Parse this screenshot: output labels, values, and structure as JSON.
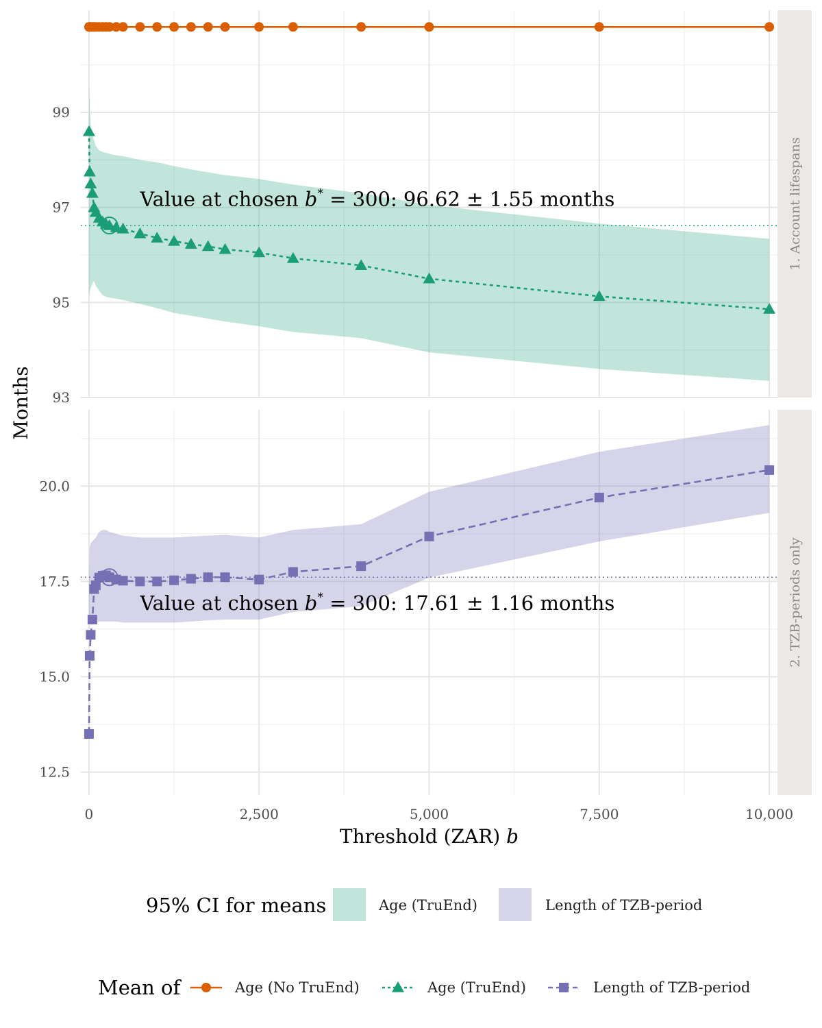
{
  "chart_data": {
    "type": "line",
    "xlabel": "Threshold (ZAR)",
    "xlabel_italic": "b",
    "ylabel": "Months",
    "x_ticks": [
      "0",
      "2,500",
      "5,000",
      "7,500",
      "10,000"
    ],
    "x_tick_values": [
      0,
      2500,
      5000,
      7500,
      10000
    ],
    "xlim": [
      -120,
      10120
    ],
    "grid": true,
    "chosen_b": 300,
    "x": [
      0,
      10,
      25,
      50,
      75,
      100,
      150,
      200,
      250,
      300,
      400,
      500,
      750,
      1000,
      1250,
      1500,
      1750,
      2000,
      2500,
      3000,
      4000,
      5000,
      7500,
      10000
    ],
    "panels": [
      {
        "strip": "1. Account lifespans",
        "ylim": [
          93,
          101.15
        ],
        "y_ticks": [
          "93",
          "95",
          "97",
          "99"
        ],
        "y_tick_values": [
          93,
          95,
          97,
          99
        ],
        "reference_value": 96.62,
        "reference_color": "#1b9e77",
        "annotation": {
          "prefix": "Value at chosen",
          "var": "b",
          "sup": "*",
          "suffix": " = 300:  96.62 ± 1.55 months",
          "x": 750,
          "y": 97.03
        },
        "series": [
          {
            "key": "no_truend",
            "name": "Age (No TruEnd)",
            "color": "#d95f02",
            "marker": "circle",
            "dash": "",
            "values": [
              100.8,
              100.8,
              100.8,
              100.8,
              100.8,
              100.8,
              100.8,
              100.8,
              100.8,
              100.8,
              100.8,
              100.8,
              100.8,
              100.8,
              100.8,
              100.8,
              100.8,
              100.8,
              100.8,
              100.8,
              100.8,
              100.8,
              100.8,
              100.8
            ]
          },
          {
            "key": "truend",
            "name": "Age (TruEnd)",
            "color": "#1b9e77",
            "marker": "triangle",
            "dash": "5,5",
            "values": [
              98.6,
              97.75,
              97.5,
              97.3,
              97.0,
              96.9,
              96.78,
              96.7,
              96.65,
              96.62,
              96.58,
              96.55,
              96.45,
              96.36,
              96.29,
              96.23,
              96.18,
              96.12,
              96.05,
              95.93,
              95.78,
              95.5,
              95.13,
              94.86
            ]
          }
        ],
        "band": {
          "name": "Age (TruEnd)",
          "color": "#1b9e77",
          "upper": [
            99.7,
            99.1,
            98.75,
            98.55,
            98.4,
            98.3,
            98.2,
            98.17,
            98.15,
            98.13,
            98.1,
            98.08,
            98.0,
            97.95,
            97.87,
            97.8,
            97.74,
            97.68,
            97.6,
            97.48,
            97.3,
            97.05,
            96.66,
            96.34
          ],
          "lower": [
            95.1,
            95.25,
            95.3,
            95.4,
            95.45,
            95.35,
            95.25,
            95.15,
            95.12,
            95.1,
            95.08,
            95.05,
            94.97,
            94.88,
            94.78,
            94.72,
            94.66,
            94.6,
            94.5,
            94.38,
            94.25,
            93.95,
            93.6,
            93.35
          ]
        }
      },
      {
        "strip": "2. TZB-periods only",
        "ylim": [
          11.9,
          22.0
        ],
        "y_ticks": [
          "12.5",
          "15.0",
          "17.5",
          "20.0"
        ],
        "y_tick_values": [
          12.5,
          15.0,
          17.5,
          20.0
        ],
        "reference_value": 17.61,
        "reference_color": "#7570b3",
        "annotation": {
          "prefix": "Value at chosen",
          "var": "b",
          "sup": "*",
          "suffix": " = 300:  17.61 ± 1.16 months",
          "x": 750,
          "y": 16.75
        },
        "series": [
          {
            "key": "tzb",
            "name": "Length of TZB-period",
            "color": "#7570b3",
            "marker": "square",
            "dash": "10,6",
            "values": [
              13.5,
              15.55,
              16.1,
              16.5,
              17.3,
              17.4,
              17.6,
              17.65,
              17.66,
              17.61,
              17.55,
              17.52,
              17.5,
              17.5,
              17.53,
              17.57,
              17.61,
              17.61,
              17.55,
              17.75,
              17.9,
              18.68,
              19.7,
              20.42
            ]
          }
        ],
        "band": {
          "name": "Length of TZB-period",
          "color": "#7570b3",
          "upper": [
            17.5,
            18.4,
            18.5,
            18.55,
            18.6,
            18.65,
            18.8,
            18.85,
            18.85,
            18.8,
            18.75,
            18.7,
            18.65,
            18.65,
            18.65,
            18.68,
            18.7,
            18.72,
            18.65,
            18.85,
            19.0,
            19.85,
            20.9,
            21.6
          ],
          "lower": [
            16.6,
            16.4,
            16.4,
            16.42,
            16.42,
            16.45,
            16.45,
            16.45,
            16.45,
            16.45,
            16.45,
            16.42,
            16.42,
            16.42,
            16.42,
            16.45,
            16.48,
            16.5,
            16.5,
            16.7,
            16.85,
            17.6,
            18.55,
            19.3
          ]
        }
      }
    ],
    "legends": [
      {
        "title": "95% CI for means",
        "items": [
          {
            "label": "Age (TruEnd)",
            "color": "#1b9e77"
          },
          {
            "label": "Length of TZB-period",
            "color": "#7570b3"
          }
        ]
      },
      {
        "title": "Mean of",
        "items": [
          {
            "label": "Age (No TruEnd)",
            "color": "#d95f02",
            "marker": "circle",
            "dash": ""
          },
          {
            "label": "Age (TruEnd)",
            "color": "#1b9e77",
            "marker": "triangle",
            "dash": "5,5"
          },
          {
            "label": "Length of TZB-period",
            "color": "#7570b3",
            "marker": "square",
            "dash": "10,6"
          }
        ]
      }
    ],
    "legend_position": "bottom"
  }
}
